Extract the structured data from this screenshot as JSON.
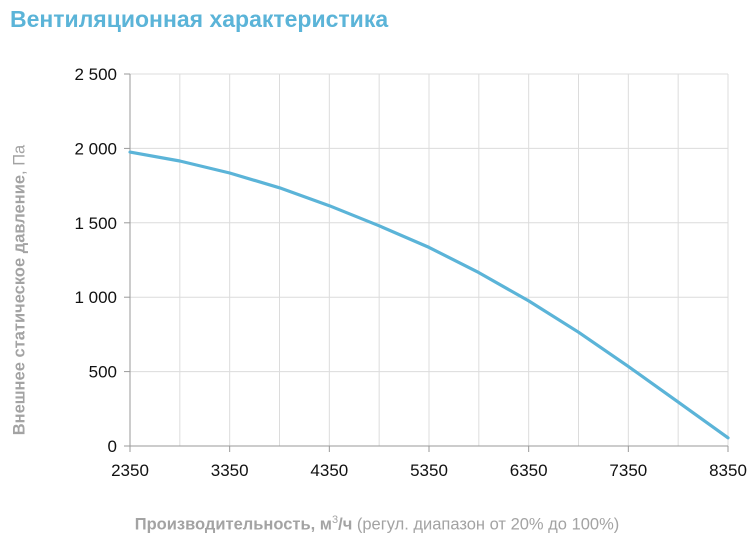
{
  "title": "Вентиляционная характеристика",
  "chart_data": {
    "type": "line",
    "title": "Вентиляционная характеристика",
    "xlabel": {
      "bold": "Производительность",
      "unit_prefix": ", м",
      "unit_sup": "3",
      "unit_suffix": "/ч",
      "note": " (регул. диапазон от 20% до 100%)"
    },
    "ylabel": {
      "bold": "Внешнее статическое давление",
      "unit": ", Па"
    },
    "x_ticks": [
      2350,
      3350,
      4350,
      5350,
      6350,
      7350,
      8350
    ],
    "x_tick_labels": [
      "2350",
      "3350",
      "4350",
      "5350",
      "6350",
      "7350",
      "8350"
    ],
    "y_ticks": [
      0,
      500,
      1000,
      1500,
      2000,
      2500
    ],
    "y_tick_labels": [
      "0",
      "500",
      "1 000",
      "1 500",
      "2 000",
      "2 500"
    ],
    "xlim": [
      2350,
      8350
    ],
    "ylim": [
      0,
      2500
    ],
    "grid": true,
    "minor_x_grid_step": 500,
    "series": [
      {
        "color": "#5bb4d8",
        "x": [
          2350,
          2850,
          3350,
          3850,
          4350,
          4850,
          5350,
          5850,
          6350,
          6850,
          7350,
          7850,
          8350
        ],
        "y": [
          1975,
          1915,
          1835,
          1735,
          1615,
          1480,
          1335,
          1165,
          975,
          765,
          535,
          295,
          55
        ]
      }
    ]
  }
}
